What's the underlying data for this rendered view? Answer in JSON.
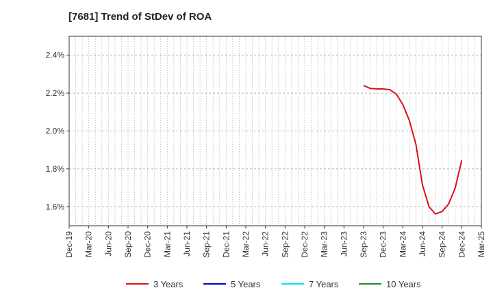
{
  "chart_data": {
    "type": "line",
    "title": "[7681]  Trend of StDev of ROA",
    "x_ticks": [
      "Dec-19",
      "Mar-20",
      "Jun-20",
      "Sep-20",
      "Dec-20",
      "Mar-21",
      "Jun-21",
      "Sep-21",
      "Dec-21",
      "Mar-22",
      "Jun-22",
      "Sep-22",
      "Dec-22",
      "Mar-23",
      "Jun-23",
      "Sep-23",
      "Dec-23",
      "Mar-24",
      "Jun-24",
      "Sep-24",
      "Dec-24",
      "Mar-25"
    ],
    "y_ticks": [
      "1.6%",
      "1.8%",
      "2.0%",
      "2.2%",
      "2.4%"
    ],
    "y_tick_values": [
      1.6,
      1.8,
      2.0,
      2.2,
      2.4
    ],
    "ylim": [
      1.5,
      2.5
    ],
    "grid": true,
    "legend_position": "bottom",
    "series": [
      {
        "name": "3 Years",
        "color": "#dd1111",
        "x": [
          "Sep-23",
          "Oct-23",
          "Nov-23",
          "Dec-23",
          "Jan-24",
          "Feb-24",
          "Mar-24",
          "Apr-24",
          "May-24",
          "Jun-24",
          "Jul-24",
          "Aug-24",
          "Sep-24",
          "Oct-24",
          "Nov-24",
          "Dec-24"
        ],
        "values": [
          2.24,
          2.225,
          2.222,
          2.222,
          2.218,
          2.195,
          2.14,
          2.055,
          1.93,
          1.715,
          1.6,
          1.562,
          1.575,
          1.615,
          1.7,
          1.845
        ]
      },
      {
        "name": "5 Years",
        "color": "#0000cc",
        "x": [],
        "values": []
      },
      {
        "name": "7 Years",
        "color": "#00e5ee",
        "x": [],
        "values": []
      },
      {
        "name": "10 Years",
        "color": "#228b22",
        "x": [],
        "values": []
      }
    ]
  }
}
